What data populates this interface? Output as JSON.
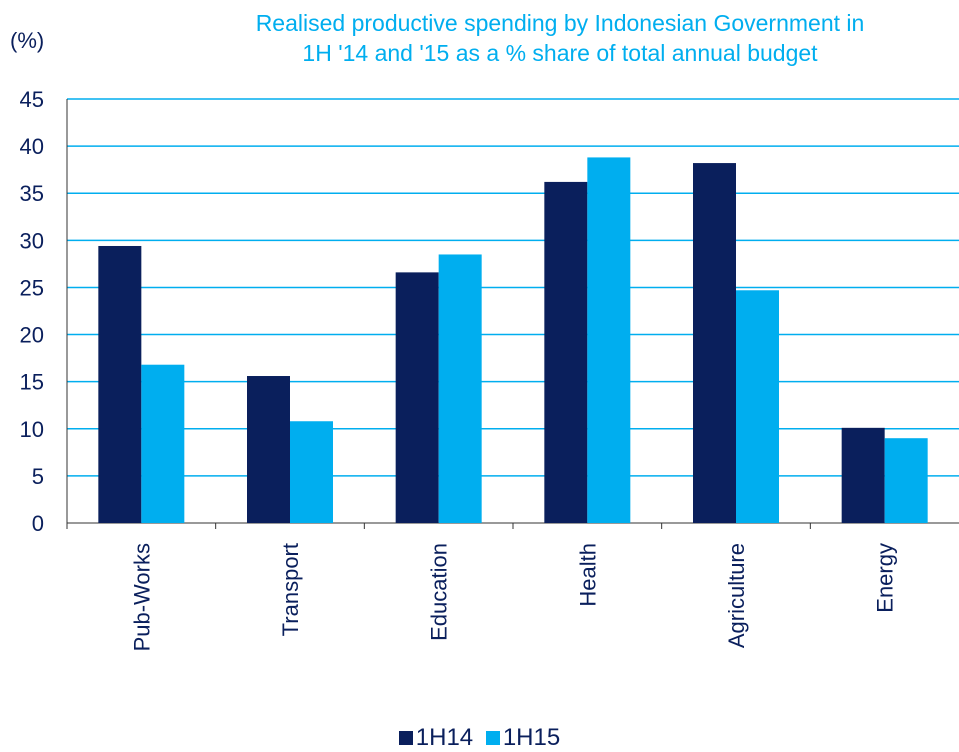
{
  "chart_data": {
    "type": "bar",
    "title_lines": [
      "Realised productive spending by Indonesian Government in",
      "1H '14 and '15 as a % share of total annual budget"
    ],
    "ylabel": "(%)",
    "xlabel": "",
    "categories": [
      "Pub-Works",
      "Transport",
      "Education",
      "Health",
      "Agriculture",
      "Energy"
    ],
    "series": [
      {
        "name": "1H14",
        "values": [
          29.4,
          15.6,
          26.6,
          36.2,
          38.2,
          10.1
        ]
      },
      {
        "name": "1H15",
        "values": [
          16.8,
          10.8,
          28.5,
          38.8,
          24.7,
          9.0
        ]
      }
    ],
    "ylim": [
      0,
      45
    ],
    "yticks": [
      0,
      5,
      10,
      15,
      20,
      25,
      30,
      35,
      40,
      45
    ],
    "grid": true,
    "legend_position": "bottom",
    "colors": {
      "1H14": "#0a1f5c",
      "1H15": "#00aeef",
      "grid": "#00aeef",
      "text": "#0a1f5c"
    }
  }
}
